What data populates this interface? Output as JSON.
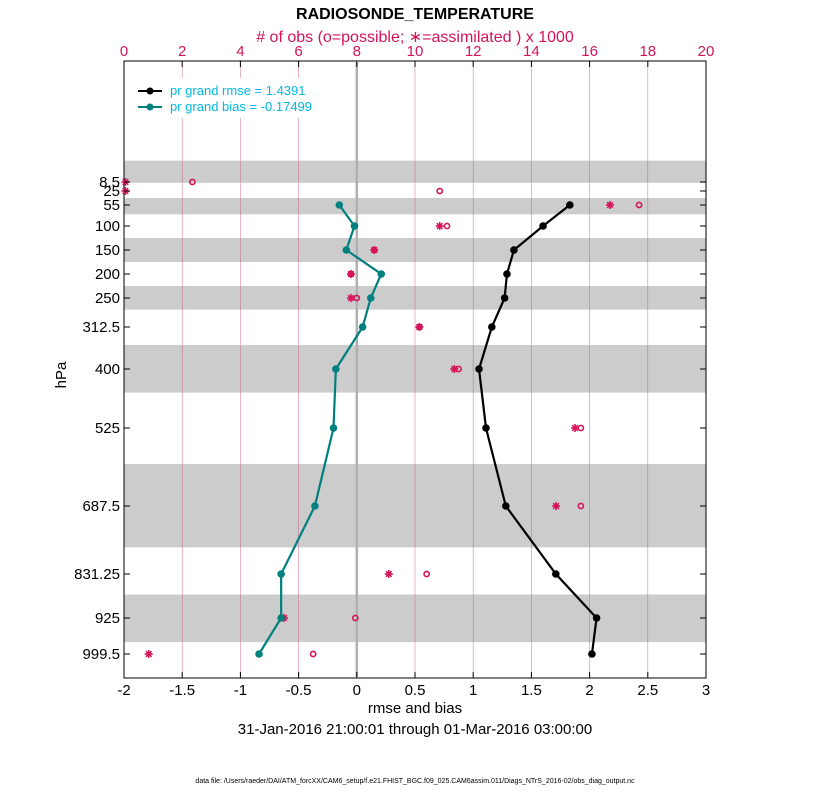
{
  "chart_data": {
    "type": "line",
    "title": "RADIOSONDE_TEMPERATURE",
    "top_axis_label": "# of obs (o=possible; ∗=assimilated ) x 1000",
    "xlabel": "rmse and bias",
    "ylabel": "hPa",
    "date_range": "31-Jan-2016 21:00:01 through 01-Mar-2016 03:00:00",
    "footer": "data file: /Users/raeder/DAI/ATM_forcXX/CAM6_setup/f.e21.FHIST_BGC.f09_025.CAM6assim.011/Diags_NTrS_2016-02/obs_diag_output.nc",
    "xlim": [
      -2,
      3
    ],
    "x_ticks": [
      -2,
      -1.5,
      -1,
      -0.5,
      0,
      0.5,
      1,
      1.5,
      2,
      2.5,
      3
    ],
    "x_tick_labels": [
      "-2",
      "-1.5",
      "-1",
      "-0.5",
      "0",
      "0.5",
      "1",
      "1.5",
      "2",
      "2.5",
      "3"
    ],
    "top_xlim": [
      0,
      20
    ],
    "top_ticks": [
      0,
      2,
      4,
      6,
      8,
      10,
      12,
      14,
      16,
      18,
      20
    ],
    "top_tick_labels": [
      "0",
      "2",
      "4",
      "6",
      "8",
      "10",
      "12",
      "14",
      "16",
      "18",
      "20"
    ],
    "levels": [
      8.5,
      25,
      55,
      100,
      150,
      200,
      250,
      312.5,
      400,
      525,
      687.5,
      831.25,
      925,
      999.5
    ],
    "level_labels": [
      "8.5",
      "25",
      "55",
      "100",
      "150",
      "200",
      "250",
      "312.5",
      "400",
      "525",
      "687.5",
      "831.25",
      "925",
      "999.5"
    ],
    "series": [
      {
        "name": "rmse",
        "legend": "pr grand rmse = 1.4391",
        "color": "#000000",
        "values": [
          null,
          null,
          1.83,
          1.6,
          1.35,
          1.29,
          1.27,
          1.16,
          1.05,
          1.11,
          1.28,
          1.71,
          2.06,
          2.02
        ]
      },
      {
        "name": "bias",
        "legend": "pr grand bias = -0.17499",
        "color": "#00807f",
        "values": [
          null,
          null,
          -0.15,
          -0.02,
          -0.09,
          0.21,
          0.12,
          0.05,
          -0.18,
          -0.2,
          -0.36,
          -0.65,
          -0.65,
          -0.84
        ]
      }
    ],
    "obs_possible_thousands": [
      2.35,
      10.85,
      17.7,
      11.1,
      8.6,
      7.8,
      8.0,
      10.15,
      11.5,
      15.7,
      15.7,
      10.4,
      7.95,
      6.5
    ],
    "obs_assimilated_thousands": [
      0.05,
      0.05,
      16.7,
      10.85,
      8.6,
      7.8,
      7.8,
      10.15,
      11.35,
      15.5,
      14.85,
      9.1,
      5.5,
      0.85
    ],
    "shaded_layers_hPa": [
      [
        7,
        10
      ],
      [
        40,
        75
      ],
      [
        125,
        175
      ],
      [
        225,
        275
      ],
      [
        350,
        450
      ],
      [
        600,
        775
      ],
      [
        875,
        975
      ]
    ],
    "colors": {
      "obs": "#d4145a",
      "shade": "#cccccc",
      "zero_line": "#b0b0b0",
      "legend_text": "#00b8e6"
    }
  }
}
